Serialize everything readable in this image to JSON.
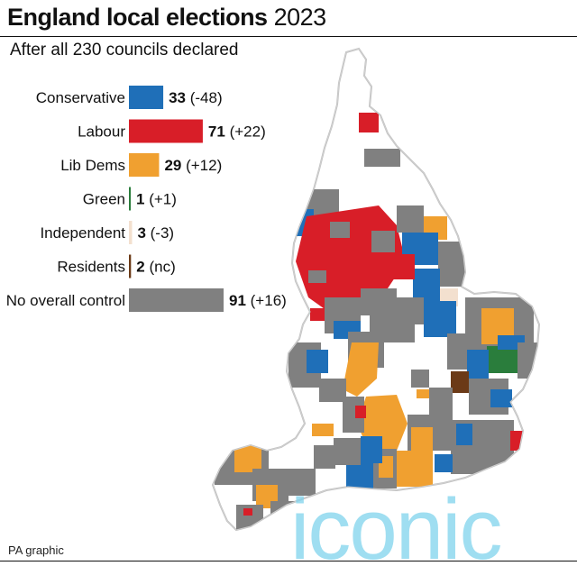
{
  "title_bold": "England local elections",
  "title_year": "2023",
  "subtitle": "After all 230 councils declared",
  "footer": "PA graphic",
  "watermark": "iconic",
  "chart_data": {
    "type": "bar",
    "orientation": "horizontal",
    "categories": [
      "Conservative",
      "Labour",
      "Lib Dems",
      "Green",
      "Independent",
      "Residents",
      "No overall control"
    ],
    "values": [
      33,
      71,
      29,
      1,
      3,
      2,
      91
    ],
    "changes": [
      "(-48)",
      "(+22)",
      "(+12)",
      "(+1)",
      "(-3)",
      "(nc)",
      "(+16)"
    ],
    "colors": [
      "#1f6fb8",
      "#d81e28",
      "#f0a030",
      "#2a7d3c",
      "#f3e0cf",
      "#6b3a17",
      "#808080"
    ],
    "xlim": [
      0,
      91
    ],
    "grid": false
  },
  "map": {
    "region": "England",
    "colors": {
      "conservative": "#1f6fb8",
      "labour": "#d81e28",
      "lib_dems": "#f0a030",
      "green": "#2a7d3c",
      "independent": "#f3e0cf",
      "residents": "#6b3a17",
      "no_overall_control": "#808080",
      "not_contested": "#ffffff"
    }
  }
}
